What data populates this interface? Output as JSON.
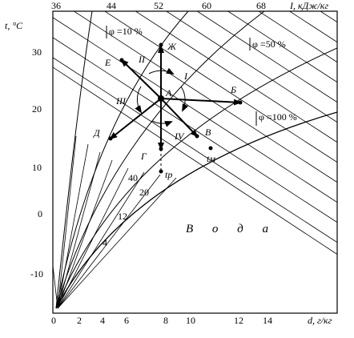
{
  "axes": {
    "t_label": "t, °C",
    "i_label": "I, кДж/кг",
    "d_label": "d, г/кг",
    "t_ticks": [
      "30",
      "20",
      "10",
      "0",
      "-10"
    ],
    "i_ticks": [
      "36",
      "44",
      "52",
      "60",
      "68"
    ],
    "d_ticks": [
      "0",
      "2",
      "4",
      "6",
      "8",
      "10",
      "12",
      "14"
    ]
  },
  "phi_labels": [
    "φ =10 %",
    "φ =50 %",
    "φ =100 %"
  ],
  "enthalpy_line_labels": [
    "40",
    "20",
    "12",
    "4"
  ],
  "water_label": "В о д а",
  "state_points": {
    "A": "А",
    "B": "Б",
    "V": "В",
    "G": "Г",
    "D": "Д",
    "E": "Е",
    "Zh": "Ж"
  },
  "process_labels": [
    "I",
    "II",
    "III",
    "IV"
  ],
  "temperature_points": {
    "tm": "tм",
    "tr": "tр"
  },
  "chart_data": {
    "type": "psychrometric (I–d) diagram",
    "x_axis": {
      "label": "d, г/кг",
      "range": [
        0,
        14
      ],
      "ticks": [
        0,
        2,
        4,
        6,
        8,
        10,
        12,
        14
      ]
    },
    "y_axis": {
      "label": "t, °C",
      "range": [
        -15,
        35
      ],
      "ticks": [
        -10,
        0,
        10,
        20,
        30
      ]
    },
    "top_axis": {
      "label": "I, кДж/кг",
      "ticks": [
        36,
        44,
        52,
        60,
        68
      ]
    },
    "rh_curves_percent": [
      10,
      50,
      100
    ],
    "points": [
      {
        "id": "А",
        "d": 7.0,
        "t": 22
      },
      {
        "id": "Б",
        "d": 12.4,
        "t": 21
      },
      {
        "id": "В",
        "d": 9.5,
        "t": 15
      },
      {
        "id": "Г",
        "d": 7.0,
        "t": 13
      },
      {
        "id": "Д",
        "d": 3.7,
        "t": 15
      },
      {
        "id": "Е",
        "d": 4.6,
        "t": 28.5
      },
      {
        "id": "Ж",
        "d": 7.0,
        "t": 31
      },
      {
        "id": "tм",
        "d": 10.4,
        "t": 13
      },
      {
        "id": "tр",
        "d": 7.0,
        "t": 9
      }
    ]
  }
}
